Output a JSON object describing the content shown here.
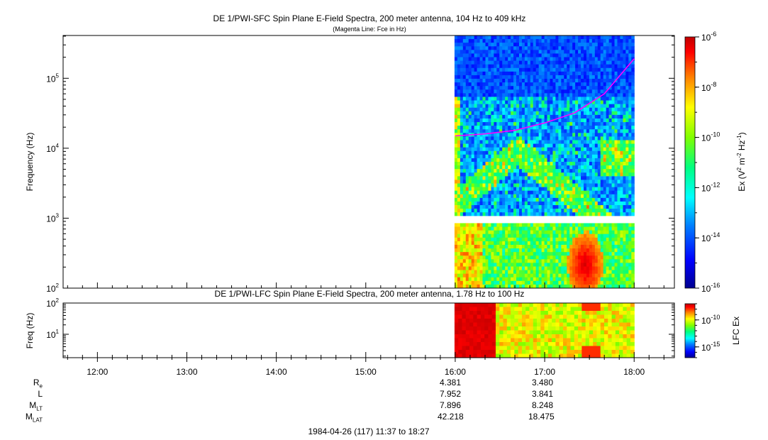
{
  "chart_data": [
    {
      "type": "heatmap",
      "title": "DE 1/PWI-SFC  Spin Plane E-Field Spectra, 200 meter antenna, 104 Hz to 409 kHz",
      "subtitle": "(Magenta Line: Fce in Hz)",
      "ylabel": "Frequency (Hz)",
      "yscale": "log",
      "ylim": [
        100,
        409000
      ],
      "yticks": [
        {
          "base": "10",
          "exp": "2"
        },
        {
          "base": "10",
          "exp": "3"
        },
        {
          "base": "10",
          "exp": "4"
        },
        {
          "base": "10",
          "exp": "5"
        }
      ],
      "colorbar": {
        "label": "Ex (V² m⁻² Hz⁻¹)",
        "label_parts": [
          "Ex (V",
          "2",
          " m",
          "-2",
          " Hz",
          "-1",
          ")"
        ],
        "scale": "log",
        "range": [
          1e-16,
          1e-06
        ],
        "ticks": [
          {
            "base": "10",
            "exp": "-16"
          },
          {
            "base": "10",
            "exp": "-14"
          },
          {
            "base": "10",
            "exp": "-12"
          },
          {
            "base": "10",
            "exp": "-10"
          },
          {
            "base": "10",
            "exp": "-8"
          },
          {
            "base": "10",
            "exp": "-6"
          }
        ]
      },
      "data_coverage": [
        "16:00",
        "18:00"
      ],
      "fce_line": {
        "color": "#ff00ff",
        "time": [
          "16:00",
          "16:20",
          "16:40",
          "17:00",
          "17:20",
          "17:40",
          "18:00"
        ],
        "freq_hz": [
          15000,
          16000,
          18000,
          23000,
          32000,
          60000,
          190000
        ]
      }
    },
    {
      "type": "heatmap",
      "title": "DE 1/PWI-LFC  Spin Plane E-Field Spectra, 200 meter antenna, 1.78 Hz to 100 Hz",
      "ylabel": "Freq (Hz)",
      "yscale": "log",
      "ylim": [
        1.78,
        100
      ],
      "yticks": [
        {
          "base": "10",
          "exp": "1"
        },
        {
          "base": "10",
          "exp": "2"
        }
      ],
      "colorbar": {
        "label": "LFC Ex",
        "scale": "log",
        "range": [
          1e-17,
          1e-07
        ],
        "ticks": [
          {
            "base": "10",
            "exp": "-15"
          },
          {
            "base": "10",
            "exp": "-10"
          }
        ]
      },
      "data_coverage": [
        "16:00",
        "18:00"
      ],
      "xlabel": "1984-04-26 (117) 11:37 to 18:27",
      "xticks": [
        "12:00",
        "13:00",
        "14:00",
        "15:00",
        "16:00",
        "17:00",
        "18:00"
      ],
      "xlim": [
        "11:37",
        "18:27"
      ]
    }
  ],
  "ephemeris": {
    "labels": [
      {
        "main": "R",
        "sub": "e"
      },
      {
        "main": "L",
        "sub": ""
      },
      {
        "main": "M",
        "sub": "LT"
      },
      {
        "main": "M",
        "sub": "LAT"
      }
    ],
    "columns": [
      {
        "time": "16:00",
        "values": [
          "4.381",
          "7.952",
          "7.896",
          "42.218"
        ]
      },
      {
        "time": "17:00",
        "values": [
          "3.480",
          "3.841",
          "8.248",
          "18.475"
        ]
      }
    ]
  },
  "colors": {
    "background": "#ffffff",
    "fce_line": "#ff00ff",
    "colormap": [
      "#00008f",
      "#0000ff",
      "#0080ff",
      "#00ffff",
      "#00ff80",
      "#80ff00",
      "#ffff00",
      "#ff8000",
      "#ff0000",
      "#c00000"
    ]
  }
}
